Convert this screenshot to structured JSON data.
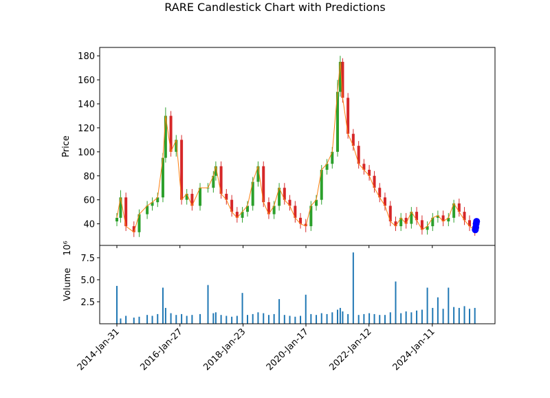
{
  "chart_data": {
    "type": "candlestick",
    "title": "RARE Candlestick Chart with Predictions",
    "ylabel": "Price",
    "volume_ylabel": "Volume",
    "volume_offset": "10⁶",
    "x": [
      "2014-01-31",
      "2014-03-15",
      "2014-05-15",
      "2014-08-15",
      "2014-10-15",
      "2015-01-15",
      "2015-03-15",
      "2015-05-15",
      "2015-07-15",
      "2015-08-15",
      "2015-10-15",
      "2015-12-15",
      "2016-02-15",
      "2016-04-15",
      "2016-06-15",
      "2016-09-15",
      "2016-12-15",
      "2017-02-15",
      "2017-03-15",
      "2017-05-15",
      "2017-07-15",
      "2017-09-15",
      "2017-11-15",
      "2018-01-15",
      "2018-03-15",
      "2018-05-15",
      "2018-07-15",
      "2018-09-15",
      "2018-11-15",
      "2019-01-15",
      "2019-03-15",
      "2019-05-15",
      "2019-07-15",
      "2019-09-15",
      "2019-11-15",
      "2020-01-15",
      "2020-03-15",
      "2020-05-15",
      "2020-07-15",
      "2020-09-15",
      "2020-11-15",
      "2021-01-15",
      "2021-02-15",
      "2021-03-15",
      "2021-05-15",
      "2021-07-15",
      "2021-09-15",
      "2021-11-15",
      "2022-01-15",
      "2022-03-15",
      "2022-05-15",
      "2022-07-15",
      "2022-09-15",
      "2022-11-15",
      "2023-01-15",
      "2023-03-15",
      "2023-05-15",
      "2023-07-15",
      "2023-09-15",
      "2023-11-15",
      "2024-01-15",
      "2024-03-15",
      "2024-05-15",
      "2024-07-15",
      "2024-09-15",
      "2024-11-15",
      "2025-01-15",
      "2025-03-15",
      "2025-05-15"
    ],
    "open": [
      42,
      45,
      62,
      38,
      33,
      48,
      55,
      58,
      62,
      95,
      130,
      100,
      110,
      60,
      65,
      55,
      70,
      70,
      80,
      88,
      65,
      60,
      50,
      45,
      50,
      55,
      75,
      88,
      58,
      48,
      55,
      70,
      60,
      55,
      45,
      40,
      38,
      55,
      60,
      85,
      90,
      100,
      150,
      175,
      145,
      115,
      105,
      90,
      85,
      80,
      70,
      62,
      55,
      42,
      38,
      45,
      40,
      50,
      43,
      35,
      38,
      45,
      47,
      42,
      45,
      57,
      50,
      43,
      38
    ],
    "high": [
      49,
      68,
      66,
      42,
      52,
      59,
      62,
      66,
      99,
      137,
      134,
      114,
      114,
      69,
      69,
      74,
      74,
      84,
      92,
      92,
      69,
      64,
      54,
      54,
      59,
      79,
      92,
      92,
      62,
      59,
      74,
      74,
      64,
      59,
      49,
      44,
      59,
      64,
      89,
      94,
      104,
      160,
      180,
      178,
      149,
      119,
      109,
      94,
      89,
      84,
      74,
      66,
      59,
      46,
      49,
      49,
      54,
      54,
      47,
      42,
      49,
      51,
      51,
      49,
      60,
      61,
      54,
      47,
      42
    ],
    "low": [
      38,
      41,
      34,
      29,
      29,
      44,
      51,
      54,
      58,
      91,
      96,
      96,
      56,
      56,
      51,
      51,
      66,
      66,
      76,
      61,
      56,
      46,
      41,
      41,
      46,
      51,
      71,
      54,
      44,
      44,
      51,
      56,
      51,
      41,
      36,
      33,
      34,
      51,
      56,
      81,
      86,
      96,
      146,
      141,
      111,
      101,
      86,
      81,
      76,
      66,
      58,
      51,
      38,
      34,
      34,
      36,
      36,
      39,
      31,
      31,
      34,
      41,
      38,
      38,
      41,
      46,
      39,
      34,
      30
    ],
    "close": [
      45,
      62,
      38,
      33,
      48,
      55,
      58,
      62,
      95,
      130,
      100,
      110,
      60,
      65,
      55,
      70,
      70,
      80,
      88,
      65,
      60,
      50,
      45,
      50,
      55,
      75,
      88,
      58,
      48,
      55,
      70,
      60,
      55,
      45,
      40,
      38,
      55,
      60,
      85,
      90,
      100,
      150,
      175,
      145,
      115,
      105,
      90,
      85,
      80,
      70,
      62,
      55,
      42,
      38,
      45,
      40,
      50,
      43,
      35,
      38,
      45,
      47,
      42,
      45,
      57,
      50,
      43,
      38,
      35
    ],
    "volume": [
      4.3,
      0.6,
      0.9,
      0.7,
      0.8,
      1.0,
      0.9,
      1.1,
      4.1,
      1.8,
      1.2,
      1.0,
      1.1,
      0.9,
      1.0,
      1.1,
      4.4,
      1.2,
      1.3,
      1.0,
      0.9,
      0.8,
      0.9,
      3.5,
      1.0,
      1.1,
      1.3,
      1.2,
      1.0,
      1.1,
      2.8,
      1.0,
      0.9,
      0.8,
      0.9,
      3.3,
      1.1,
      1.0,
      1.2,
      1.1,
      1.3,
      1.6,
      1.8,
      1.4,
      1.1,
      8.1,
      1.0,
      1.1,
      1.2,
      1.1,
      1.0,
      1.0,
      1.3,
      4.8,
      1.2,
      1.4,
      1.3,
      1.5,
      1.6,
      4.1,
      1.8,
      3.0,
      1.7,
      4.1,
      1.9,
      1.8,
      2.0,
      1.7,
      1.8
    ],
    "up_color": "#2ca02c",
    "down_color": "#d62728",
    "line_color": "#ff7f0e",
    "volume_color": "#1f77b4",
    "predictions": {
      "x": [
        "2025-05-20",
        "2025-05-25",
        "2025-05-30",
        "2025-06-04"
      ],
      "values": [
        35,
        37,
        40,
        42
      ],
      "color": "#0000ff"
    },
    "xlim": [
      "2013-07-17",
      "2026-01-02"
    ],
    "xticks": [
      {
        "value": "2014-01-31",
        "label": "2014-Jan-31"
      },
      {
        "value": "2016-01-27",
        "label": "2016-Jan-27"
      },
      {
        "value": "2018-01-23",
        "label": "2018-Jan-23"
      },
      {
        "value": "2020-01-17",
        "label": "2020-Jan-17"
      },
      {
        "value": "2022-01-12",
        "label": "2022-Jan-12"
      },
      {
        "value": "2024-01-11",
        "label": "2024-Jan-11"
      }
    ],
    "ylim": [
      22,
      187
    ],
    "yticks": [
      40,
      60,
      80,
      100,
      120,
      140,
      160,
      180
    ],
    "volume_ylim": [
      0,
      8.9
    ],
    "volume_yticks": [
      2.5,
      {
        "value": 5,
        "label": "5.0"
      },
      7.5
    ]
  }
}
